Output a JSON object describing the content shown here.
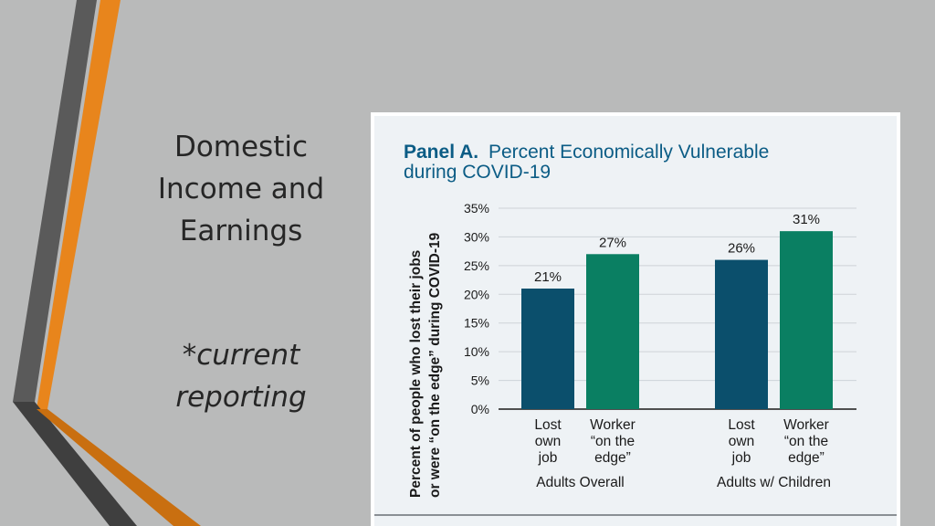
{
  "slide": {
    "title_lines": [
      "Domestic",
      "Income and",
      "Earnings"
    ],
    "note_lines": [
      "*current",
      "reporting"
    ],
    "colors": {
      "background": "#b9baba",
      "stripe_orange": "#e8851c",
      "stripe_gray": "#5a5a5a"
    }
  },
  "chart_data": {
    "type": "bar",
    "title_bold": "Panel A.",
    "title_rest": "Percent Economically Vulnerable",
    "title_line2": "during COVID-19",
    "ylabel_line1": "Percent of people who lost their jobs",
    "ylabel_line2": "or were “on the edge” during COVID-19",
    "ylim": [
      0,
      35
    ],
    "yticks": [
      "0%",
      "5%",
      "10%",
      "15%",
      "20%",
      "25%",
      "30%",
      "35%"
    ],
    "grid": true,
    "bars": [
      {
        "group": "Adults Overall",
        "label_lines": [
          "Lost",
          "own",
          "job"
        ],
        "value": 21,
        "value_label": "21%",
        "color": "#0b4f6c"
      },
      {
        "group": "Adults Overall",
        "label_lines": [
          "Worker",
          "“on the",
          "edge”"
        ],
        "value": 27,
        "value_label": "27%",
        "color": "#0a7f62"
      },
      {
        "group": "Adults w/ Children",
        "label_lines": [
          "Lost",
          "own",
          "job"
        ],
        "value": 26,
        "value_label": "26%",
        "color": "#0b4f6c"
      },
      {
        "group": "Adults w/ Children",
        "label_lines": [
          "Worker",
          "“on the",
          "edge”"
        ],
        "value": 31,
        "value_label": "31%",
        "color": "#0a7f62"
      }
    ],
    "groups": [
      "Adults Overall",
      "Adults w/ Children"
    ],
    "colors": {
      "title": "#0b5c85",
      "text": "#1a1a1a",
      "grid": "#cdd3d8"
    }
  }
}
